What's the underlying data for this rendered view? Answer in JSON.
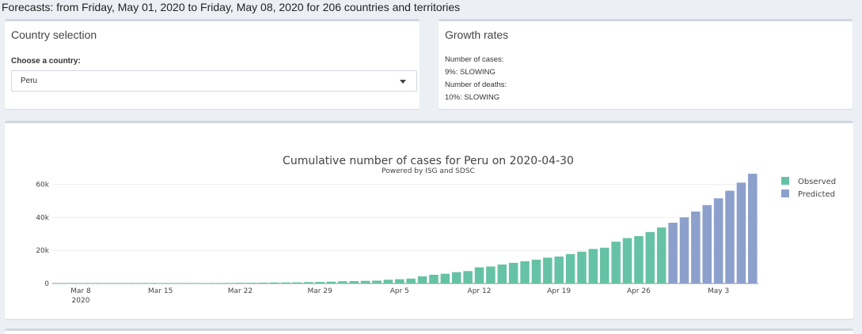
{
  "headline": "Forecasts: from Friday, May 01, 2020 to Friday, May 08, 2020 for 206 countries and territories",
  "country_box": {
    "title": "Country selection",
    "label": "Choose a country:",
    "selected": "Peru"
  },
  "growth_box": {
    "title": "Growth rates",
    "cases_label": "Number of cases:",
    "cases_value": "9%: SLOWING",
    "deaths_label": "Number of deaths:",
    "deaths_value": "10%: SLOWING"
  },
  "colors": {
    "observed": "#66c2a5",
    "predicted": "#8da0cb"
  },
  "chart_data": {
    "type": "bar",
    "title": "Cumulative number of cases for Peru on 2020-04-30",
    "subtitle": "Powered by ISG and SDSC",
    "xlabel": "",
    "ylabel": "",
    "ylim": [
      0,
      67000
    ],
    "yticks": [
      0,
      20000,
      40000,
      60000
    ],
    "ytick_labels": [
      "0",
      "20k",
      "40k",
      "60k"
    ],
    "xtick_labels": [
      {
        "label": "Mar 8",
        "label2": "2020",
        "index": 0
      },
      {
        "label": "Mar 15",
        "index": 7
      },
      {
        "label": "Mar 22",
        "index": 14
      },
      {
        "label": "Mar 29",
        "index": 21
      },
      {
        "label": "Apr 5",
        "index": 28
      },
      {
        "label": "Apr 12",
        "index": 35
      },
      {
        "label": "Apr 19",
        "index": 42
      },
      {
        "label": "Apr 26",
        "index": 49
      },
      {
        "label": "May 3",
        "index": 56
      }
    ],
    "legend_position": "top-right",
    "grid": true,
    "series": [
      {
        "name": "Observed",
        "start_date": "2020-03-06",
        "values": [
          1,
          1,
          6,
          9,
          11,
          17,
          22,
          38,
          43,
          71,
          86,
          117,
          145,
          234,
          263,
          318,
          395,
          416,
          480,
          580,
          635,
          671,
          852,
          950,
          1065,
          1323,
          1414,
          1595,
          1746,
          2281,
          2561,
          2954,
          4342,
          5256,
          5897,
          6848,
          7519,
          9784,
          10303,
          11475,
          12491,
          13489,
          14420,
          15628,
          16325,
          17837,
          19250,
          20914,
          21648,
          25331,
          27517,
          28699,
          31190,
          33931
        ]
      },
      {
        "name": "Predicted",
        "start_date": "2020-05-01",
        "values": [
          36800,
          40100,
          43600,
          47500,
          51600,
          56200,
          61100,
          66500
        ]
      }
    ]
  }
}
